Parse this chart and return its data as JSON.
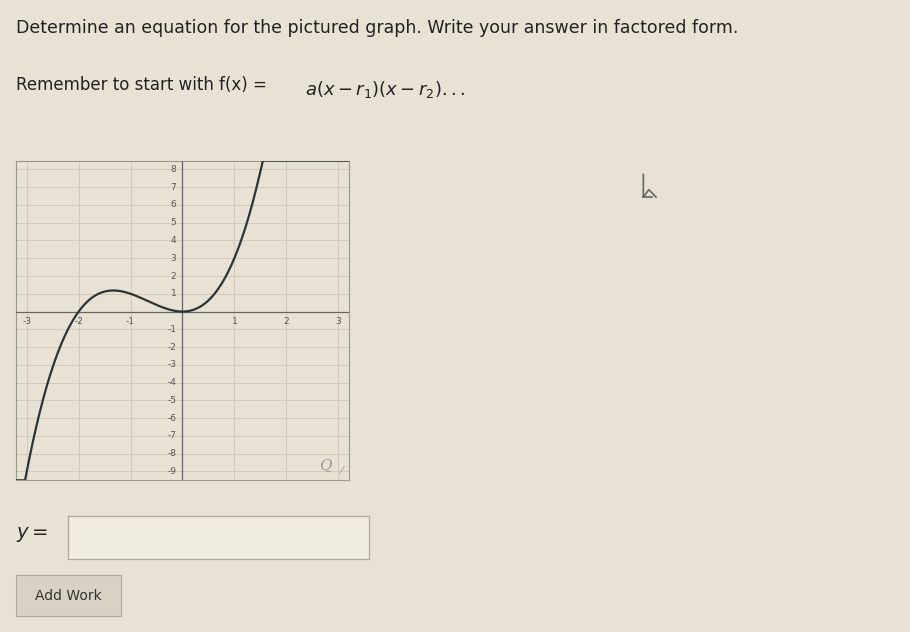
{
  "title_line1": "Determine an equation for the pictured graph. Write your answer in factored form.",
  "bg_color": "#e8e2d4",
  "graph_bg": "#e8e2d4",
  "curve_color": "#2a3535",
  "grid_color": "#ccc5b5",
  "axis_color": "#666666",
  "tick_color": "#555555",
  "border_color": "#999990",
  "xlim": [
    -3.2,
    3.2
  ],
  "ylim": [
    -9.5,
    8.5
  ],
  "xticks": [
    -3,
    -2,
    -1,
    1,
    2,
    3
  ],
  "yticks": [
    -9,
    -8,
    -7,
    -6,
    -5,
    -4,
    -3,
    -2,
    -1,
    1,
    2,
    3,
    4,
    5,
    6,
    7,
    8
  ],
  "coeff_a": 1,
  "root1": 0,
  "root2": 0,
  "root3": -2
}
